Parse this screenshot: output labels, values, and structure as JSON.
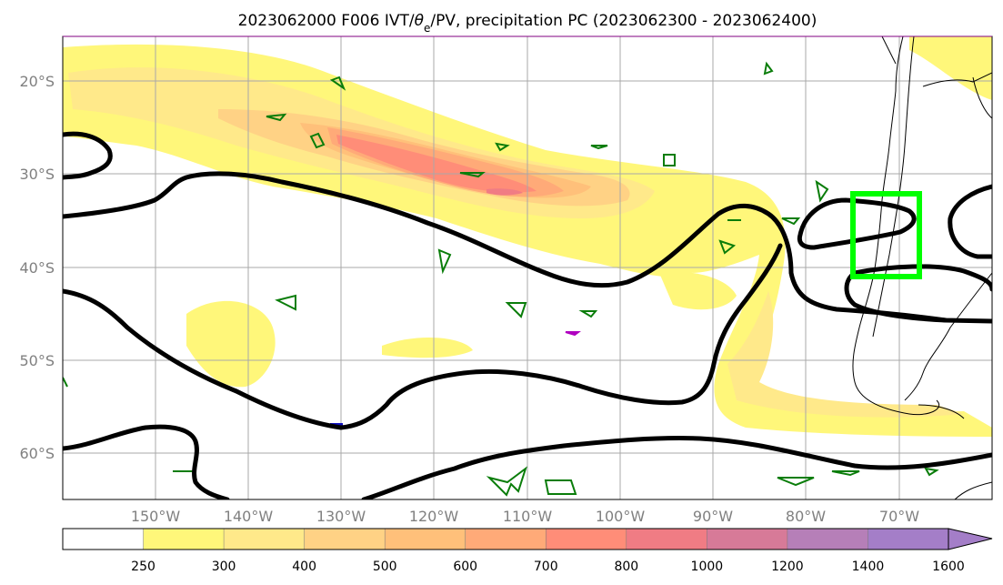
{
  "title_prefix": "2023062000 F006 IVT/",
  "title_theta": "θ",
  "title_sub": "e",
  "title_suffix": "/PV, precipitation PC (2023062300 - 2023062400)",
  "lat_labels": [
    "20°S",
    "30°S",
    "40°S",
    "50°S",
    "60°S"
  ],
  "lon_labels": [
    "150°W",
    "140°W",
    "130°W",
    "120°W",
    "110°W",
    "100°W",
    "90°W",
    "80°W",
    "70°W"
  ],
  "colorbar": {
    "levels": [
      "250",
      "300",
      "400",
      "500",
      "600",
      "700",
      "800",
      "1000",
      "1200",
      "1400",
      "1600"
    ],
    "colors": [
      "#ffffff",
      "#fff77a",
      "#ffe98a",
      "#ffd285",
      "#ffc07a",
      "#ffaa78",
      "#ff8d78",
      "#f07c84",
      "#d77a98",
      "#b67fb8",
      "#a47ec8"
    ]
  },
  "map": {
    "lon_range": [
      -160,
      -60
    ],
    "lat_range": [
      -65,
      -15
    ],
    "highlight_box_color": "#00ff00",
    "contour_color": "#000000",
    "precip_contour_color": "#0a7d0a",
    "ivt_fill_colors": [
      "#fff77a",
      "#ffe98a",
      "#ffd285",
      "#ffc07a",
      "#ffaa78",
      "#ff8d78",
      "#f07c84"
    ]
  }
}
